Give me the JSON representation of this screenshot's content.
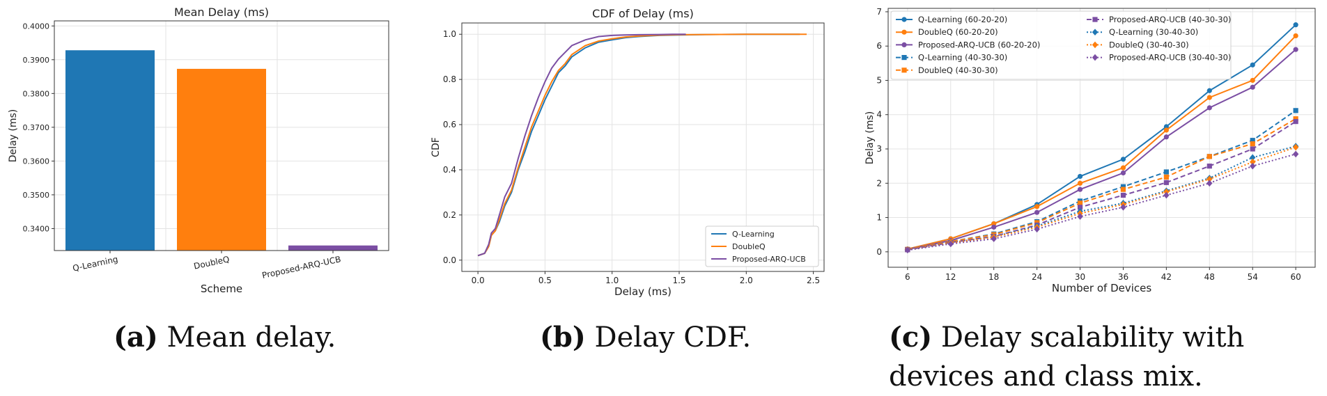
{
  "colors": {
    "qlearning": "#1f77b4",
    "doubleq": "#ff7f0e",
    "proposed": "#7b4ea3",
    "grid": "#e3e3e3",
    "axis": "#333333"
  },
  "captions": [
    {
      "label": "(a)",
      "text": " Mean delay."
    },
    {
      "label": "(b)",
      "text": " Delay CDF."
    },
    {
      "label": "(c)",
      "text": " Delay scalability with devices and class mix."
    }
  ],
  "chart_data": [
    {
      "type": "bar",
      "title": "Mean Delay (ms)",
      "xlabel": "Scheme",
      "ylabel": "Delay (ms)",
      "categories": [
        "Q-Learning",
        "DoubleQ",
        "Proposed-ARQ-UCB"
      ],
      "values": [
        0.3928,
        0.3873,
        0.335
      ],
      "ylim": [
        0.3335,
        0.4015
      ],
      "yticks": [
        0.34,
        0.35,
        0.36,
        0.37,
        0.38,
        0.39,
        0.4
      ],
      "ytick_labels": [
        "0.3400",
        "0.3500",
        "0.3600",
        "0.3700",
        "0.3800",
        "0.3900",
        "0.4000"
      ],
      "grid": true
    },
    {
      "type": "line",
      "title": "CDF of Delay (ms)",
      "xlabel": "Delay (ms)",
      "ylabel": "CDF",
      "xlim": [
        -0.12,
        2.58
      ],
      "ylim": [
        -0.05,
        1.05
      ],
      "xticks": [
        0.0,
        0.5,
        1.0,
        1.5,
        2.0,
        2.5
      ],
      "xtick_labels": [
        "0.0",
        "0.5",
        "1.0",
        "1.5",
        "2.0",
        "2.5"
      ],
      "yticks": [
        0.0,
        0.2,
        0.4,
        0.6,
        0.8,
        1.0
      ],
      "ytick_labels": [
        "0.0",
        "0.2",
        "0.4",
        "0.6",
        "0.8",
        "1.0"
      ],
      "legend_position": "bottom-right",
      "grid": true,
      "series": [
        {
          "name": "Q-Learning",
          "x": [
            0.0,
            0.05,
            0.08,
            0.1,
            0.13,
            0.16,
            0.2,
            0.25,
            0.3,
            0.35,
            0.4,
            0.45,
            0.5,
            0.55,
            0.6,
            0.65,
            0.7,
            0.8,
            0.9,
            1.0,
            1.1,
            1.2,
            1.35,
            1.5,
            1.7,
            2.0,
            2.2,
            2.4
          ],
          "y": [
            0.02,
            0.03,
            0.06,
            0.11,
            0.13,
            0.17,
            0.24,
            0.3,
            0.4,
            0.48,
            0.57,
            0.64,
            0.71,
            0.77,
            0.83,
            0.86,
            0.9,
            0.94,
            0.965,
            0.975,
            0.985,
            0.99,
            0.995,
            0.997,
            0.999,
            1.0,
            1.0,
            1.0
          ]
        },
        {
          "name": "DoubleQ",
          "x": [
            0.0,
            0.05,
            0.08,
            0.1,
            0.13,
            0.16,
            0.2,
            0.25,
            0.3,
            0.35,
            0.4,
            0.45,
            0.5,
            0.55,
            0.6,
            0.65,
            0.7,
            0.8,
            0.9,
            1.0,
            1.1,
            1.2,
            1.35,
            1.5,
            1.7,
            2.0,
            2.2,
            2.45
          ],
          "y": [
            0.02,
            0.03,
            0.06,
            0.11,
            0.13,
            0.18,
            0.25,
            0.31,
            0.41,
            0.5,
            0.59,
            0.66,
            0.73,
            0.79,
            0.84,
            0.87,
            0.91,
            0.95,
            0.97,
            0.98,
            0.988,
            0.992,
            0.996,
            0.998,
            0.999,
            1.0,
            1.0,
            1.0
          ]
        },
        {
          "name": "Proposed-ARQ-UCB",
          "x": [
            0.0,
            0.05,
            0.08,
            0.1,
            0.13,
            0.16,
            0.2,
            0.25,
            0.3,
            0.35,
            0.4,
            0.45,
            0.5,
            0.55,
            0.6,
            0.65,
            0.7,
            0.8,
            0.9,
            1.0,
            1.1,
            1.2,
            1.35,
            1.45,
            1.55
          ],
          "y": [
            0.02,
            0.03,
            0.07,
            0.12,
            0.14,
            0.2,
            0.28,
            0.34,
            0.45,
            0.55,
            0.64,
            0.72,
            0.79,
            0.85,
            0.89,
            0.92,
            0.95,
            0.975,
            0.99,
            0.995,
            0.997,
            0.998,
            0.999,
            1.0,
            1.0
          ]
        }
      ]
    },
    {
      "type": "line",
      "title": "",
      "xlabel": "Number of Devices",
      "ylabel": "Delay (ms)",
      "x": [
        6,
        12,
        18,
        24,
        30,
        36,
        42,
        48,
        54,
        60
      ],
      "xlim": [
        3.3,
        62.7
      ],
      "ylim": [
        -0.45,
        7.1
      ],
      "yticks": [
        0,
        1,
        2,
        3,
        4,
        5,
        6,
        7
      ],
      "legend_position": "top-left",
      "grid": true,
      "series": [
        {
          "name": "Q-Learning (60-20-20)",
          "color": "qlearning",
          "dash": "solid",
          "marker": "circle",
          "values": [
            0.08,
            0.38,
            0.82,
            1.38,
            2.2,
            2.7,
            3.65,
            4.7,
            5.45,
            6.62
          ]
        },
        {
          "name": "DoubleQ (60-20-20)",
          "color": "doubleq",
          "dash": "solid",
          "marker": "circle",
          "values": [
            0.08,
            0.38,
            0.82,
            1.32,
            2.0,
            2.45,
            3.55,
            4.5,
            5.0,
            6.3
          ]
        },
        {
          "name": "Proposed-ARQ-UCB (60-20-20)",
          "color": "proposed",
          "dash": "solid",
          "marker": "circle",
          "values": [
            0.07,
            0.33,
            0.72,
            1.15,
            1.82,
            2.3,
            3.35,
            4.2,
            4.8,
            5.9
          ]
        },
        {
          "name": "Q-Learning (40-30-30)",
          "color": "qlearning",
          "dash": "dashed",
          "marker": "square",
          "values": [
            0.07,
            0.3,
            0.52,
            0.88,
            1.48,
            1.9,
            2.33,
            2.78,
            3.25,
            4.12
          ]
        },
        {
          "name": "DoubleQ (40-30-30)",
          "color": "doubleq",
          "dash": "dashed",
          "marker": "square",
          "values": [
            0.07,
            0.3,
            0.5,
            0.85,
            1.42,
            1.82,
            2.18,
            2.78,
            3.15,
            3.88
          ]
        },
        {
          "name": "Proposed-ARQ-UCB (40-30-30)",
          "color": "proposed",
          "dash": "dashed",
          "marker": "square",
          "values": [
            0.06,
            0.27,
            0.45,
            0.78,
            1.3,
            1.65,
            2.02,
            2.5,
            3.0,
            3.8
          ]
        },
        {
          "name": "Q-Learning (30-40-30)",
          "color": "qlearning",
          "dash": "dotted",
          "marker": "diamond",
          "values": [
            0.06,
            0.27,
            0.44,
            0.75,
            1.18,
            1.42,
            1.78,
            2.15,
            2.75,
            3.08
          ]
        },
        {
          "name": "DoubleQ (30-40-30)",
          "color": "doubleq",
          "dash": "dotted",
          "marker": "diamond",
          "values": [
            0.06,
            0.26,
            0.43,
            0.72,
            1.12,
            1.38,
            1.75,
            2.12,
            2.62,
            3.05
          ]
        },
        {
          "name": "Proposed-ARQ-UCB (30-40-30)",
          "color": "proposed",
          "dash": "dotted",
          "marker": "diamond",
          "values": [
            0.05,
            0.23,
            0.38,
            0.66,
            1.03,
            1.3,
            1.65,
            2.0,
            2.5,
            2.85
          ]
        }
      ]
    }
  ]
}
